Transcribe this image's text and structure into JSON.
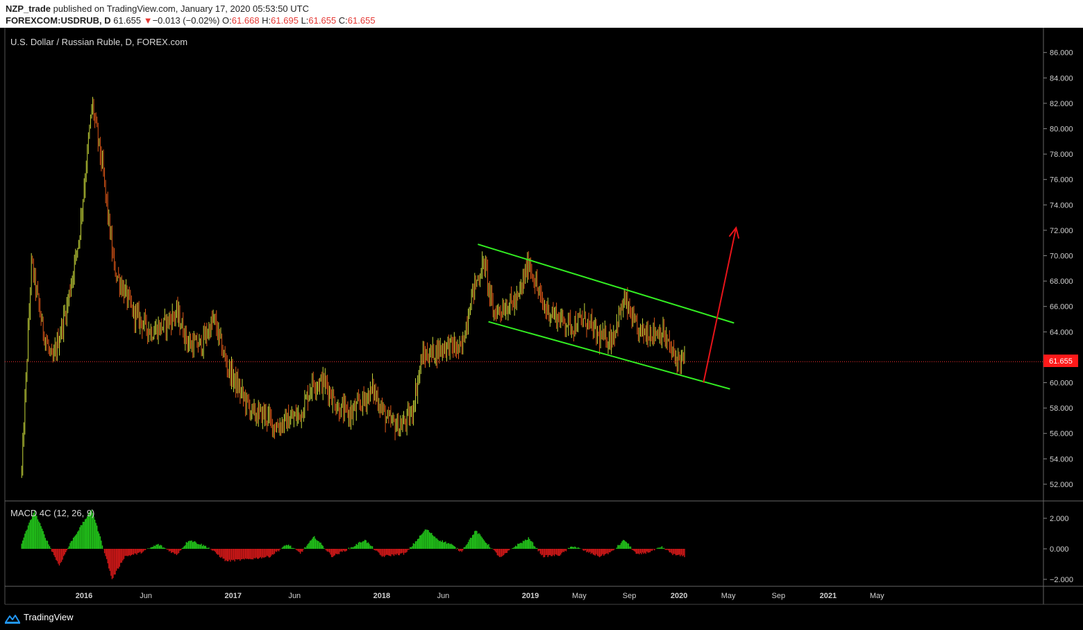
{
  "header": {
    "author": "NZP_trade",
    "published": "published on TradingView.com, January 17, 2020 05:53:50 UTC",
    "symbol": "FOREXCOM:USDRUB, D",
    "last": "61.655",
    "change_arrow": "▼",
    "change": "−0.013 (−0.02%)",
    "o_label": "O:",
    "o": "61.668",
    "h_label": "H:",
    "h": "61.695",
    "l_label": "L:",
    "l": "61.655",
    "c_label": "C:",
    "c": "61.655"
  },
  "footer": {
    "brand": "TradingView"
  },
  "colors": {
    "background": "#000000",
    "channel": "#33ee22",
    "arrow": "#e8141a",
    "price_line": "#ff3333",
    "macd_positive": "#22c41a",
    "macd_negative": "#d01818",
    "candle_up": "#c8d83a",
    "candle_down": "#e05818"
  },
  "chart_data": [
    {
      "type": "candlestick",
      "title": "U.S. Dollar / Russian Ruble, D, FOREX.com",
      "x_ticks": [
        "2016",
        "Jun",
        "2017",
        "Jun",
        "2018",
        "Jun",
        "2019",
        "May",
        "Sep",
        "2020",
        "May",
        "Sep",
        "2021",
        "May"
      ],
      "y_ticks": [
        "86.000",
        "84.000",
        "82.000",
        "80.000",
        "78.000",
        "76.000",
        "74.000",
        "72.000",
        "70.000",
        "68.000",
        "66.000",
        "64.000",
        "62.000",
        "60.000",
        "58.000",
        "56.000",
        "54.000",
        "52.000"
      ],
      "ylim": [
        50.6,
        87.4
      ],
      "last_price_label": "61.655",
      "approx_close_path": [
        {
          "date": "2015-08-01",
          "value": 53.0
        },
        {
          "date": "2015-08-25",
          "value": 69.5
        },
        {
          "date": "2015-09-20",
          "value": 64.5
        },
        {
          "date": "2015-10-15",
          "value": 61.5
        },
        {
          "date": "2015-11-20",
          "value": 66.0
        },
        {
          "date": "2015-12-20",
          "value": 71.5
        },
        {
          "date": "2016-01-21",
          "value": 82.0
        },
        {
          "date": "2016-02-15",
          "value": 77.0
        },
        {
          "date": "2016-03-15",
          "value": 69.0
        },
        {
          "date": "2016-05-01",
          "value": 65.5
        },
        {
          "date": "2016-06-15",
          "value": 64.0
        },
        {
          "date": "2016-07-15",
          "value": 64.5
        },
        {
          "date": "2016-08-15",
          "value": 65.5
        },
        {
          "date": "2016-09-15",
          "value": 63.0
        },
        {
          "date": "2016-10-15",
          "value": 63.0
        },
        {
          "date": "2016-11-15",
          "value": 65.0
        },
        {
          "date": "2016-12-15",
          "value": 61.5
        },
        {
          "date": "2017-01-15",
          "value": 59.5
        },
        {
          "date": "2017-02-20",
          "value": 57.5
        },
        {
          "date": "2017-03-20",
          "value": 57.5
        },
        {
          "date": "2017-04-15",
          "value": 56.5
        },
        {
          "date": "2017-05-15",
          "value": 57.0
        },
        {
          "date": "2017-06-15",
          "value": 57.5
        },
        {
          "date": "2017-07-15",
          "value": 60.0
        },
        {
          "date": "2017-08-15",
          "value": 60.0
        },
        {
          "date": "2017-09-15",
          "value": 58.0
        },
        {
          "date": "2017-10-15",
          "value": 57.5
        },
        {
          "date": "2017-11-15",
          "value": 58.5
        },
        {
          "date": "2017-12-10",
          "value": 59.5
        },
        {
          "date": "2018-01-15",
          "value": 57.0
        },
        {
          "date": "2018-02-15",
          "value": 56.5
        },
        {
          "date": "2018-03-15",
          "value": 57.5
        },
        {
          "date": "2018-04-10",
          "value": 62.0
        },
        {
          "date": "2018-05-15",
          "value": 62.5
        },
        {
          "date": "2018-06-15",
          "value": 63.0
        },
        {
          "date": "2018-07-15",
          "value": 62.5
        },
        {
          "date": "2018-08-10",
          "value": 67.0
        },
        {
          "date": "2018-09-10",
          "value": 69.5
        },
        {
          "date": "2018-10-01",
          "value": 65.5
        },
        {
          "date": "2018-11-01",
          "value": 66.0
        },
        {
          "date": "2018-12-01",
          "value": 66.5
        },
        {
          "date": "2018-12-28",
          "value": 69.5
        },
        {
          "date": "2019-02-01",
          "value": 66.0
        },
        {
          "date": "2019-03-15",
          "value": 65.0
        },
        {
          "date": "2019-04-15",
          "value": 64.5
        },
        {
          "date": "2019-05-15",
          "value": 65.0
        },
        {
          "date": "2019-06-20",
          "value": 63.5
        },
        {
          "date": "2019-07-20",
          "value": 63.5
        },
        {
          "date": "2019-08-20",
          "value": 66.5
        },
        {
          "date": "2019-09-20",
          "value": 64.0
        },
        {
          "date": "2019-10-20",
          "value": 64.0
        },
        {
          "date": "2019-11-20",
          "value": 64.0
        },
        {
          "date": "2019-12-20",
          "value": 62.0
        },
        {
          "date": "2020-01-17",
          "value": 61.655
        }
      ],
      "drawings": {
        "channel_upper": [
          {
            "date": "2018-08-25",
            "value": 70.9
          },
          {
            "date": "2020-05-15",
            "value": 64.7
          }
        ],
        "channel_lower": [
          {
            "date": "2018-09-20",
            "value": 64.8
          },
          {
            "date": "2020-05-05",
            "value": 59.5
          }
        ],
        "arrow": [
          {
            "date": "2020-03-01",
            "value": 60.0
          },
          {
            "date": "2020-05-20",
            "value": 72.2
          }
        ]
      }
    },
    {
      "type": "histogram",
      "title": "MACD 4C (12, 26, 9)",
      "y_ticks": [
        "2.000",
        "0.000",
        "−2.000"
      ],
      "ylim": [
        -2.3,
        2.8
      ],
      "approx_hist_path": [
        {
          "date": "2015-08-01",
          "value": 0.4
        },
        {
          "date": "2015-09-01",
          "value": 2.5
        },
        {
          "date": "2015-10-01",
          "value": 0.6
        },
        {
          "date": "2015-11-01",
          "value": -1.1
        },
        {
          "date": "2015-12-01",
          "value": 0.5
        },
        {
          "date": "2016-01-20",
          "value": 2.6
        },
        {
          "date": "2016-02-15",
          "value": 0.3
        },
        {
          "date": "2016-03-10",
          "value": -2.0
        },
        {
          "date": "2016-04-10",
          "value": -0.5
        },
        {
          "date": "2016-05-15",
          "value": -0.3
        },
        {
          "date": "2016-07-01",
          "value": 0.3
        },
        {
          "date": "2016-08-15",
          "value": -0.4
        },
        {
          "date": "2016-09-15",
          "value": 0.6
        },
        {
          "date": "2016-11-01",
          "value": 0.1
        },
        {
          "date": "2016-12-15",
          "value": -0.8
        },
        {
          "date": "2017-02-01",
          "value": -0.7
        },
        {
          "date": "2017-04-01",
          "value": -0.5
        },
        {
          "date": "2017-05-15",
          "value": 0.3
        },
        {
          "date": "2017-06-15",
          "value": -0.3
        },
        {
          "date": "2017-07-20",
          "value": 0.8
        },
        {
          "date": "2017-09-01",
          "value": -0.5
        },
        {
          "date": "2017-10-20",
          "value": 0.1
        },
        {
          "date": "2017-11-20",
          "value": 0.6
        },
        {
          "date": "2018-01-01",
          "value": -0.5
        },
        {
          "date": "2018-03-01",
          "value": -0.3
        },
        {
          "date": "2018-04-20",
          "value": 1.3
        },
        {
          "date": "2018-05-20",
          "value": 0.6
        },
        {
          "date": "2018-06-20",
          "value": 0.3
        },
        {
          "date": "2018-07-15",
          "value": -0.2
        },
        {
          "date": "2018-08-20",
          "value": 1.2
        },
        {
          "date": "2018-09-15",
          "value": 0.4
        },
        {
          "date": "2018-10-20",
          "value": -0.6
        },
        {
          "date": "2018-11-20",
          "value": 0.1
        },
        {
          "date": "2018-12-28",
          "value": 0.7
        },
        {
          "date": "2019-02-01",
          "value": -0.5
        },
        {
          "date": "2019-03-15",
          "value": -0.4
        },
        {
          "date": "2019-04-15",
          "value": 0.2
        },
        {
          "date": "2019-05-20",
          "value": -0.2
        },
        {
          "date": "2019-06-20",
          "value": -0.5
        },
        {
          "date": "2019-07-20",
          "value": -0.2
        },
        {
          "date": "2019-08-20",
          "value": 0.6
        },
        {
          "date": "2019-09-20",
          "value": -0.4
        },
        {
          "date": "2019-10-20",
          "value": -0.2
        },
        {
          "date": "2019-11-20",
          "value": 0.1
        },
        {
          "date": "2019-12-20",
          "value": -0.4
        },
        {
          "date": "2020-01-17",
          "value": -0.5
        }
      ]
    }
  ]
}
